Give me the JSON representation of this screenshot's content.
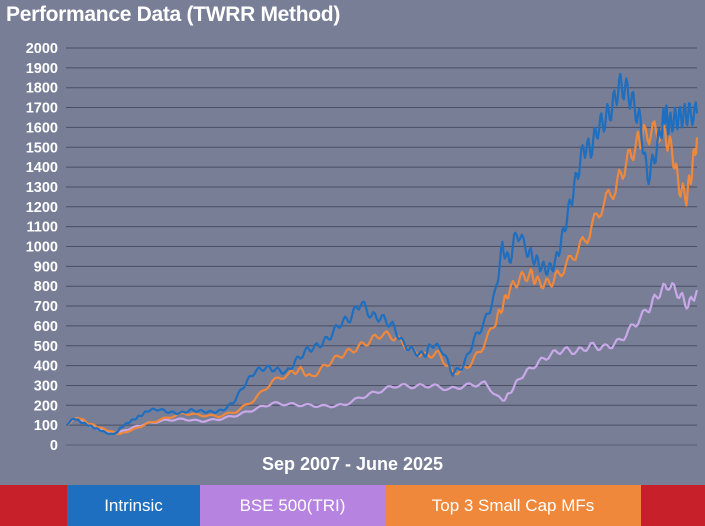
{
  "title": "Performance Data (TWRR Method)",
  "chart_data": {
    "type": "line",
    "title": "Performance Data (TWRR Method)",
    "xlabel": "Sep 2007 - June 2025",
    "ylabel": "",
    "ylim": [
      0,
      2000
    ],
    "yticks": [
      0,
      100,
      200,
      300,
      400,
      500,
      600,
      700,
      800,
      900,
      1000,
      1100,
      1200,
      1300,
      1400,
      1500,
      1600,
      1700,
      1800,
      1900,
      2000
    ],
    "grid": true,
    "x_range": [
      2007.67,
      2025.5
    ],
    "series": [
      {
        "name": "Intrinsic",
        "color": "#1f6fc0",
        "x": [
          2007.67,
          2007.9,
          2008.1,
          2008.3,
          2008.5,
          2008.7,
          2008.9,
          2009.1,
          2009.2,
          2009.4,
          2009.6,
          2009.8,
          2010.0,
          2010.3,
          2010.6,
          2010.9,
          2011.2,
          2011.5,
          2011.8,
          2012.1,
          2012.4,
          2012.7,
          2013.0,
          2013.3,
          2013.6,
          2013.9,
          2014.2,
          2014.5,
          2014.8,
          2015.1,
          2015.4,
          2015.7,
          2016.0,
          2016.3,
          2016.6,
          2016.9,
          2017.2,
          2017.5,
          2017.8,
          2018.0,
          2018.3,
          2018.6,
          2018.9,
          2019.2,
          2019.5,
          2019.8,
          2020.0,
          2020.2,
          2020.4,
          2020.7,
          2020.9,
          2021.1,
          2021.3,
          2021.5,
          2021.7,
          2021.9,
          2022.1,
          2022.3,
          2022.5,
          2022.7,
          2022.9,
          2023.1,
          2023.3,
          2023.5,
          2023.7,
          2023.9,
          2024.1,
          2024.3,
          2024.5,
          2024.6,
          2024.7,
          2024.85,
          2025.0,
          2025.15,
          2025.3,
          2025.5
        ],
        "values": [
          100,
          135,
          115,
          100,
          85,
          70,
          55,
          60,
          85,
          110,
          130,
          150,
          175,
          180,
          165,
          160,
          175,
          170,
          165,
          175,
          215,
          300,
          370,
          390,
          380,
          365,
          430,
          480,
          500,
          540,
          610,
          640,
          720,
          650,
          640,
          600,
          510,
          470,
          450,
          510,
          480,
          360,
          400,
          530,
          620,
          760,
          1000,
          920,
          1080,
          980,
          940,
          900,
          880,
          920,
          1050,
          1200,
          1350,
          1500,
          1490,
          1600,
          1640,
          1700,
          1810,
          1790,
          1720,
          1620,
          1340,
          1450,
          1600,
          1680,
          1610,
          1640,
          1650,
          1660,
          1670,
          1670
        ]
      },
      {
        "name": "BSE 500(TRI)",
        "color": "#c8a8e8",
        "x": [
          2007.67,
          2008.0,
          2008.3,
          2008.6,
          2008.9,
          2009.2,
          2009.6,
          2010.0,
          2010.5,
          2011.0,
          2011.5,
          2012.0,
          2012.5,
          2013.0,
          2013.5,
          2014.0,
          2014.5,
          2015.0,
          2015.5,
          2016.0,
          2016.5,
          2017.0,
          2017.5,
          2018.0,
          2018.5,
          2019.0,
          2019.5,
          2020.0,
          2020.2,
          2020.5,
          2020.9,
          2021.3,
          2021.7,
          2022.1,
          2022.5,
          2022.9,
          2023.3,
          2023.7,
          2024.1,
          2024.4,
          2024.7,
          2025.0,
          2025.25,
          2025.5
        ],
        "values": [
          100,
          140,
          100,
          80,
          60,
          65,
          90,
          110,
          125,
          130,
          120,
          130,
          150,
          180,
          210,
          205,
          200,
          195,
          200,
          240,
          270,
          300,
          295,
          300,
          280,
          300,
          310,
          220,
          260,
          340,
          400,
          450,
          480,
          470,
          500,
          490,
          520,
          600,
          680,
          760,
          810,
          760,
          700,
          780
        ]
      },
      {
        "name": "Top 3 Small Cap MFs",
        "color": "#f0883c",
        "x": [
          2007.67,
          2008.0,
          2008.3,
          2008.6,
          2008.9,
          2009.2,
          2009.6,
          2010.0,
          2010.5,
          2011.0,
          2011.5,
          2012.0,
          2012.5,
          2013.0,
          2013.5,
          2014.0,
          2014.3,
          2014.6,
          2015.0,
          2015.4,
          2015.8,
          2016.2,
          2016.6,
          2017.0,
          2017.4,
          2017.8,
          2018.2,
          2018.6,
          2019.0,
          2019.4,
          2019.8,
          2020.0,
          2020.2,
          2020.5,
          2020.8,
          2021.0,
          2021.3,
          2021.6,
          2022.0,
          2022.4,
          2022.8,
          2023.2,
          2023.5,
          2023.8,
          2024.0,
          2024.3,
          2024.6,
          2024.8,
          2025.0,
          2025.2,
          2025.35,
          2025.5
        ],
        "values": [
          100,
          140,
          110,
          90,
          70,
          55,
          80,
          110,
          135,
          160,
          150,
          145,
          170,
          230,
          320,
          360,
          380,
          340,
          400,
          450,
          480,
          520,
          560,
          540,
          480,
          450,
          460,
          360,
          390,
          480,
          620,
          700,
          780,
          840,
          860,
          820,
          810,
          860,
          950,
          1050,
          1200,
          1300,
          1420,
          1520,
          1560,
          1580,
          1560,
          1480,
          1300,
          1250,
          1380,
          1550
        ]
      }
    ],
    "legend": [
      "Intrinsic",
      "BSE 500(TRI)",
      "Top 3 Small Cap MFs"
    ],
    "legend_position": "bottom"
  },
  "legend_items": [
    {
      "label": "",
      "color": "#c8202a"
    },
    {
      "label": "Intrinsic",
      "color": "#1f6fc0"
    },
    {
      "label": "BSE 500(TRI)",
      "color": "#b683e0"
    },
    {
      "label": "Top 3 Small Cap MFs",
      "color": "#f0883c"
    },
    {
      "label": "",
      "color": "#c8202a"
    }
  ]
}
